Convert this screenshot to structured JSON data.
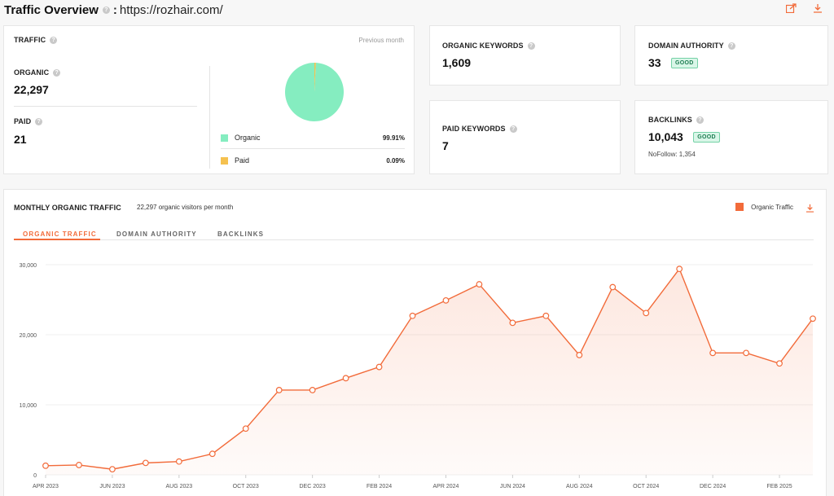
{
  "header": {
    "title": "Traffic Overview",
    "separator": ":",
    "url": "https://rozhair.com/",
    "help_icon": "?",
    "export_icon": "share-export-icon",
    "download_icon": "download-icon"
  },
  "traffic_card": {
    "label": "Traffic",
    "period": "Previous month",
    "organic_label": "Organic",
    "organic_value": "22,297",
    "paid_label": "Paid",
    "paid_value": "21",
    "legend": [
      {
        "name": "Organic",
        "percent": "99.91%",
        "color": "#85edc0"
      },
      {
        "name": "Paid",
        "percent": "0.09%",
        "color": "#f5c14f"
      }
    ],
    "pie": {
      "organic_share": 0.9991,
      "paid_share": 0.0009
    }
  },
  "organic_keywords": {
    "label": "Organic Keywords",
    "value": "1,609"
  },
  "paid_keywords": {
    "label": "Paid Keywords",
    "value": "7"
  },
  "domain_authority": {
    "label": "Domain Authority",
    "value": "33",
    "badge": "GOOD"
  },
  "backlinks": {
    "label": "Backlinks",
    "value": "10,043",
    "badge": "GOOD",
    "nofollow": "NoFollow: 1,354"
  },
  "monthly": {
    "title": "Monthly Organic Traffic",
    "subtitle": "22,297 organic visitors per month",
    "legend_label": "Organic Traffic",
    "tabs": [
      "Organic Traffic",
      "Domain Authority",
      "Backlinks"
    ],
    "active_tab": 0
  },
  "colors": {
    "accent": "#f26b3a",
    "organic": "#85edc0",
    "paid": "#f5c14f",
    "good_bg": "#d9f6e8"
  },
  "chart_data": {
    "type": "area",
    "x": [
      "APR 2023",
      "MAY 2023",
      "JUN 2023",
      "JUL 2023",
      "AUG 2023",
      "SEP 2023",
      "OCT 2023",
      "NOV 2023",
      "DEC 2023",
      "JAN 2024",
      "FEB 2024",
      "MAR 2024",
      "APR 2024",
      "MAY 2024",
      "JUN 2024",
      "JUL 2024",
      "AUG 2024",
      "SEP 2024",
      "OCT 2024",
      "NOV 2024",
      "DEC 2024",
      "JAN 2025",
      "FEB 2025",
      "MAR 2025"
    ],
    "series": [
      {
        "name": "Organic Traffic",
        "values": [
          1300,
          1400,
          800,
          1700,
          1900,
          3000,
          6600,
          12100,
          12100,
          13800,
          15400,
          22700,
          24900,
          27200,
          21700,
          22700,
          17100,
          26800,
          23100,
          29400,
          17400,
          17400,
          15900,
          22300
        ]
      }
    ],
    "ylim": [
      0,
      30000
    ],
    "yticks": [
      0,
      10000,
      20000,
      30000
    ],
    "ytick_labels": [
      "0",
      "10,000",
      "20,000",
      "30,000"
    ],
    "xtick_labels": [
      "APR 2023",
      "JUN 2023",
      "AUG 2023",
      "OCT 2023",
      "DEC 2023",
      "FEB 2024",
      "APR 2024",
      "JUN 2024",
      "AUG 2024",
      "OCT 2024",
      "DEC 2024",
      "FEB 2025"
    ],
    "grid": true,
    "legend": "top-right"
  }
}
